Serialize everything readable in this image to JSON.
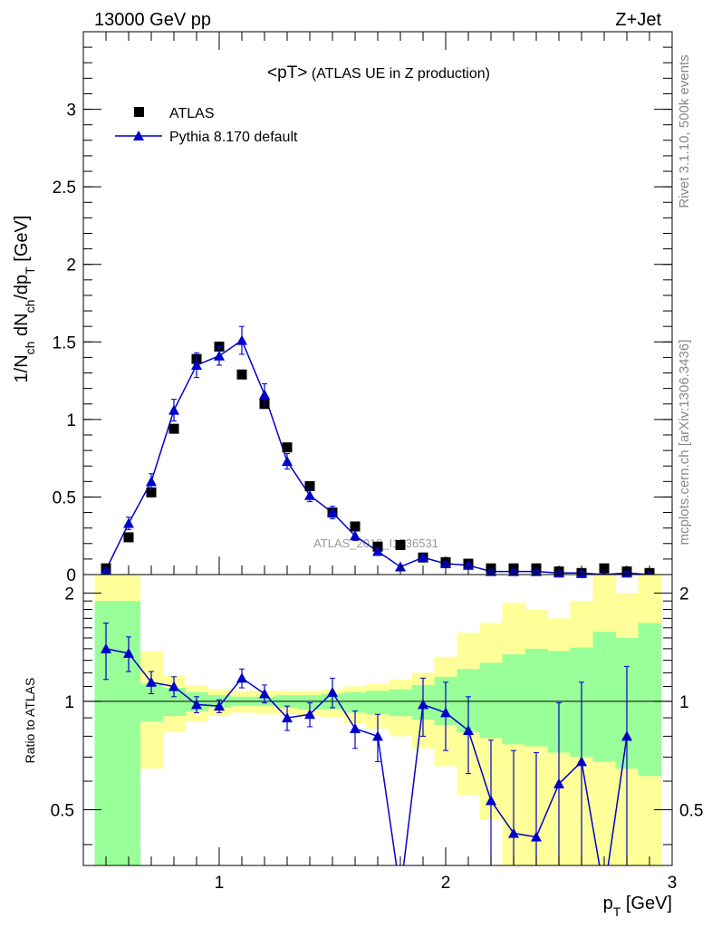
{
  "header": {
    "left": "13000 GeV pp",
    "right": "Z+Jet"
  },
  "side_text": {
    "top": "Rivet 3.1.10,  500k events",
    "bottom": "mcplots.cern.ch [arXiv:1306.3436]"
  },
  "colors": {
    "mc": "#0000cc",
    "data": "#000000",
    "band_inner": "#99ff99",
    "band_outer": "#ffff99"
  },
  "chart_data": [
    {
      "type": "scatter",
      "panel": "main",
      "title": "<pT> (ATLAS UE in Z production)",
      "ylabel": "1/N_ch dN_ch/dp_T [GeV]",
      "xlim": [
        0.4,
        3.0
      ],
      "ylim": [
        0,
        3.5
      ],
      "yticks": [
        0,
        0.5,
        1,
        1.5,
        2,
        2.5,
        3
      ],
      "ytick_labels": [
        "0",
        "0.5",
        "1",
        "1.5",
        "2",
        "2.5",
        "3"
      ],
      "watermark": "ATLAS_2019_I1736531",
      "legend_position": "top-left",
      "x": [
        0.5,
        0.6,
        0.7,
        0.8,
        0.9,
        1.0,
        1.1,
        1.2,
        1.3,
        1.4,
        1.5,
        1.6,
        1.7,
        1.8,
        1.9,
        2.0,
        2.1,
        2.2,
        2.3,
        2.4,
        2.5,
        2.6,
        2.7,
        2.8,
        2.9
      ],
      "series": [
        {
          "name": "ATLAS",
          "marker": "square",
          "values": [
            0.04,
            0.24,
            0.53,
            0.94,
            1.39,
            1.47,
            1.29,
            1.1,
            0.82,
            0.57,
            0.4,
            0.31,
            0.18,
            0.19,
            0.11,
            0.08,
            0.07,
            0.04,
            0.04,
            0.04,
            0.02,
            0.01,
            0.04,
            0.02,
            0.01
          ]
        },
        {
          "name": "Pythia 8.170 default",
          "marker": "triangle",
          "values": [
            0.03,
            0.33,
            0.6,
            1.06,
            1.35,
            1.41,
            1.51,
            1.16,
            0.73,
            0.51,
            0.4,
            0.25,
            0.15,
            0.05,
            0.11,
            0.07,
            0.06,
            0.02,
            0.02,
            0.02,
            0.01,
            0.01,
            0.0,
            0.01,
            0.0
          ],
          "errors": [
            0.01,
            0.04,
            0.05,
            0.07,
            0.08,
            0.06,
            0.09,
            0.07,
            0.05,
            0.04,
            0.04,
            0.03,
            0.02,
            0.01,
            0.01,
            0.01,
            0.01,
            0.01,
            0.01,
            0.01,
            0.01,
            0.01,
            0.0,
            0.01,
            0.0
          ]
        }
      ]
    },
    {
      "type": "line",
      "panel": "ratio",
      "ylabel": "Ratio to ATLAS",
      "xlabel": "p_T [GeV]",
      "xlim": [
        0.4,
        3.0
      ],
      "ylim": [
        0.35,
        2.25
      ],
      "yticks": [
        0.5,
        1,
        2
      ],
      "ytick_labels": [
        "0.5",
        "1",
        "2"
      ],
      "xticks": [
        1,
        2,
        3
      ],
      "xtick_labels": [
        "1",
        "2",
        "3"
      ],
      "bin_edges": [
        0.45,
        0.55,
        0.65,
        0.75,
        0.85,
        0.95,
        1.05,
        1.15,
        1.25,
        1.35,
        1.45,
        1.55,
        1.65,
        1.75,
        1.85,
        1.95,
        2.05,
        2.15,
        2.25,
        2.35,
        2.45,
        2.55,
        2.65,
        2.75,
        2.85,
        2.95
      ],
      "band_inner_lo": [
        0.35,
        0.35,
        0.88,
        0.91,
        0.94,
        0.96,
        0.97,
        0.97,
        0.96,
        0.95,
        0.95,
        0.93,
        0.92,
        0.91,
        0.89,
        0.86,
        0.82,
        0.79,
        0.76,
        0.75,
        0.72,
        0.7,
        0.68,
        0.65,
        0.62,
        0.35
      ],
      "band_inner_hi": [
        1.9,
        1.9,
        1.12,
        1.09,
        1.06,
        1.04,
        1.03,
        1.03,
        1.04,
        1.04,
        1.05,
        1.06,
        1.07,
        1.08,
        1.11,
        1.17,
        1.23,
        1.28,
        1.35,
        1.4,
        1.38,
        1.41,
        1.56,
        1.5,
        1.65,
        2.25
      ],
      "band_outer_lo": [
        0.35,
        0.35,
        0.65,
        0.82,
        0.88,
        0.91,
        0.93,
        0.92,
        0.92,
        0.91,
        0.9,
        0.87,
        0.84,
        0.8,
        0.74,
        0.66,
        0.55,
        0.47,
        0.35,
        0.35,
        0.35,
        0.35,
        0.35,
        0.35,
        0.35,
        0.35
      ],
      "band_outer_hi": [
        2.25,
        2.25,
        1.38,
        1.18,
        1.11,
        1.08,
        1.07,
        1.07,
        1.07,
        1.07,
        1.08,
        1.1,
        1.12,
        1.15,
        1.2,
        1.33,
        1.55,
        1.65,
        1.88,
        1.8,
        1.7,
        1.9,
        2.25,
        2.0,
        2.25,
        2.25
      ],
      "x": [
        0.5,
        0.6,
        0.7,
        0.8,
        0.9,
        1.0,
        1.1,
        1.2,
        1.3,
        1.4,
        1.5,
        1.6,
        1.7,
        1.8,
        1.9,
        2.0,
        2.1,
        2.2,
        2.3,
        2.4,
        2.5,
        2.6,
        2.7,
        2.8
      ],
      "ratio": [
        1.4,
        1.36,
        1.13,
        1.1,
        0.98,
        0.97,
        1.16,
        1.05,
        0.9,
        0.92,
        1.06,
        0.84,
        0.8,
        0.2,
        0.98,
        0.93,
        0.83,
        0.53,
        0.43,
        0.42,
        0.59,
        0.68,
        0.2,
        0.8
      ],
      "ratio_err": [
        0.25,
        0.15,
        0.08,
        0.07,
        0.05,
        0.04,
        0.07,
        0.06,
        0.07,
        0.07,
        0.1,
        0.1,
        0.12,
        0.1,
        0.18,
        0.2,
        0.2,
        0.25,
        0.3,
        0.3,
        0.4,
        0.45,
        0.3,
        0.45
      ]
    }
  ]
}
